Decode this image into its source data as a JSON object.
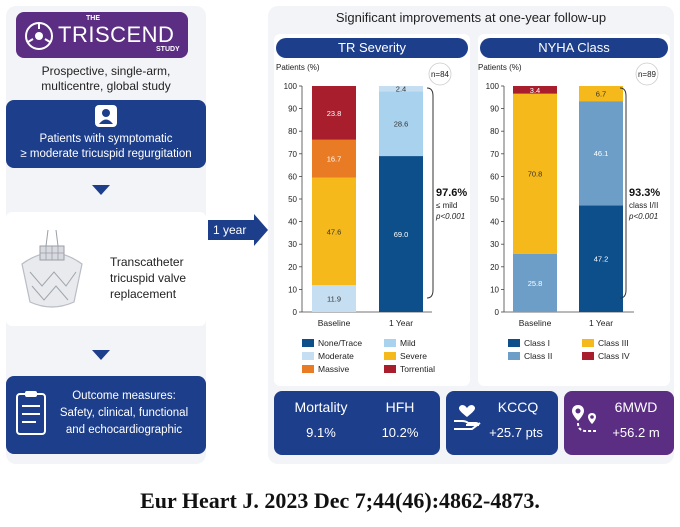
{
  "left": {
    "logo_the": "THE",
    "logo_main": "TRISCEND",
    "logo_study": "STUDY",
    "study_desc_1": "Prospective, single-arm,",
    "study_desc_2": "multicentre, global study",
    "patients_1": "Patients with symptomatic",
    "patients_2": "≥ moderate tricuspid regurgitation",
    "procedure_1": "Transcatheter",
    "procedure_2": "tricuspid valve",
    "procedure_3": "replacement",
    "outcome_title": "Outcome measures:",
    "outcome_1": "Safety, clinical, functional",
    "outcome_2": "and echocardiographic"
  },
  "arrow_label": "1 year",
  "right_title": "Significant improvements at one-year follow-up",
  "citation": "Eur Heart J. 2023 Dec 7;44(46):4862-4873.",
  "colors": {
    "navy": "#1d3e8a",
    "purple": "#5b2e83",
    "none_trace": "#0d4f8b",
    "mild": "#a9d2ee",
    "moderate": "#c5def1",
    "severe": "#f5b91b",
    "massive": "#ea7b25",
    "torrential": "#a81e2d",
    "class1": "#0d4f8b",
    "class2": "#6d9ec7",
    "class3": "#f5b91b",
    "class4": "#a81e2d"
  },
  "chart_data": [
    {
      "type": "bar",
      "title": "TR Severity",
      "ylabel": "Patients (%)",
      "n_label": "n=84",
      "ylim": [
        0,
        100
      ],
      "yticks": [
        "0",
        "10",
        "20",
        "30",
        "40",
        "50",
        "60",
        "70",
        "80",
        "90",
        "100"
      ],
      "categories": [
        "Baseline",
        "1 Year"
      ],
      "series": [
        {
          "name": "None/Trace",
          "values": [
            0,
            69.0
          ],
          "labels": [
            "",
            "69.0"
          ]
        },
        {
          "name": "Mild",
          "values": [
            0,
            28.6
          ],
          "labels": [
            "",
            "28.6"
          ]
        },
        {
          "name": "Moderate",
          "values": [
            11.9,
            2.4
          ],
          "labels": [
            "11.9",
            "2.4"
          ]
        },
        {
          "name": "Severe",
          "values": [
            47.6,
            0
          ],
          "labels": [
            "47.6",
            ""
          ]
        },
        {
          "name": "Massive",
          "values": [
            16.7,
            0
          ],
          "labels": [
            "16.7",
            ""
          ]
        },
        {
          "name": "Torrential",
          "values": [
            23.8,
            0
          ],
          "labels": [
            "23.8",
            ""
          ]
        }
      ],
      "legend_order": [
        "None/Trace",
        "Mild",
        "Moderate",
        "Severe",
        "Massive",
        "Torrential"
      ],
      "annotation": {
        "value": "97.6%",
        "line2": "≤ mild",
        "line3": "p<0.001"
      }
    },
    {
      "type": "bar",
      "title": "NYHA Class",
      "ylabel": "Patients (%)",
      "n_label": "n=89",
      "ylim": [
        0,
        100
      ],
      "yticks": [
        "0",
        "10",
        "20",
        "30",
        "40",
        "50",
        "60",
        "70",
        "80",
        "90",
        "100"
      ],
      "categories": [
        "Baseline",
        "1 Year"
      ],
      "series": [
        {
          "name": "Class I",
          "values": [
            0,
            47.2
          ],
          "labels": [
            "",
            "47.2"
          ]
        },
        {
          "name": "Class II",
          "values": [
            25.8,
            46.1
          ],
          "labels": [
            "25.8",
            "46.1"
          ]
        },
        {
          "name": "Class III",
          "values": [
            70.8,
            6.7
          ],
          "labels": [
            "70.8",
            "6.7"
          ]
        },
        {
          "name": "Class IV",
          "values": [
            3.4,
            0
          ],
          "labels": [
            "3.4",
            ""
          ]
        }
      ],
      "legend_order": [
        "Class I",
        "Class III",
        "Class II",
        "Class IV"
      ],
      "annotation": {
        "value": "93.3%",
        "line2": "class I/II",
        "line3": "p<0.001"
      }
    }
  ],
  "stats": {
    "mortality_label": "Mortality",
    "mortality_value": "9.1%",
    "hfh_label": "HFH",
    "hfh_value": "10.2%",
    "kccq_label": "KCCQ",
    "kccq_value": "+25.7 pts",
    "mwd_label": "6MWD",
    "mwd_value": "+56.2 m"
  }
}
